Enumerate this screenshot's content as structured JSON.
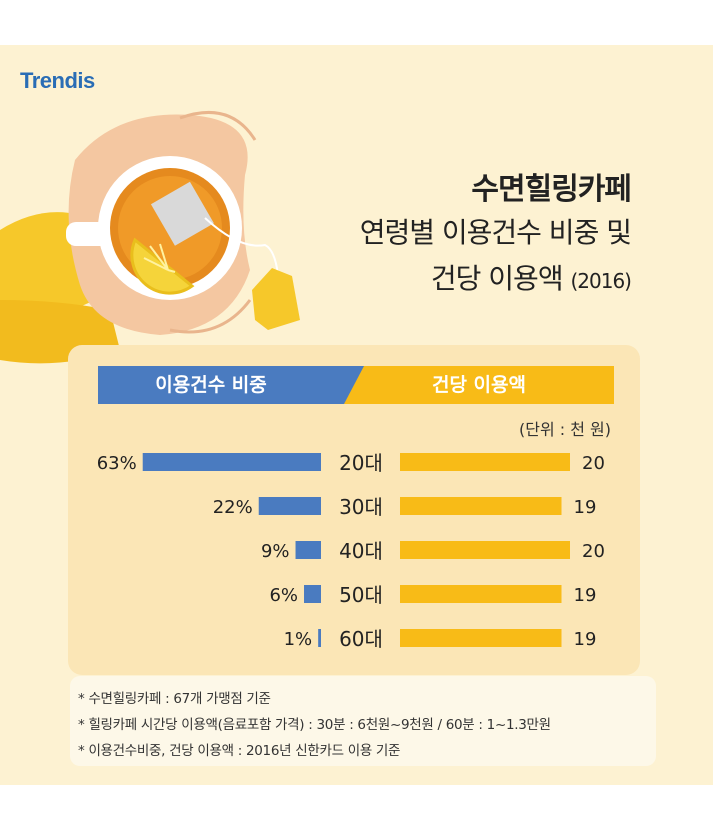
{
  "brand": "Trendis",
  "title": {
    "line1": "수면힐링카페",
    "line2": "연령별 이용건수 비중 및",
    "line3": "건당 이용액",
    "year": "(2016)"
  },
  "colors": {
    "count": "#4a7bc0",
    "amount": "#f8bb17"
  },
  "chart_data": {
    "type": "bar",
    "title": "수면힐링카페 연령별 이용건수 비중 및 건당 이용액 (2016)",
    "unit": "(단위 : 천 원)",
    "categories": [
      "20대",
      "30대",
      "40대",
      "50대",
      "60대"
    ],
    "series": [
      {
        "name": "이용건수 비중",
        "values": [
          63,
          22,
          9,
          6,
          1
        ],
        "labels": [
          "63%",
          "22%",
          "9%",
          "6%",
          "1%"
        ]
      },
      {
        "name": "건당 이용액",
        "values": [
          20,
          19,
          20,
          19,
          19
        ],
        "labels": [
          "20",
          "19",
          "20",
          "19",
          "19"
        ]
      }
    ]
  },
  "notes": [
    "* 수면힐링카페 : 67개 가맹점 기준",
    "* 힐링카페 시간당 이용액(음료포함 가격) : 30분 : 6천원~9천원 / 60분 : 1~1.3만원",
    "* 이용건수비중, 건당 이용액 : 2016년 신한카드 이용 기준"
  ]
}
